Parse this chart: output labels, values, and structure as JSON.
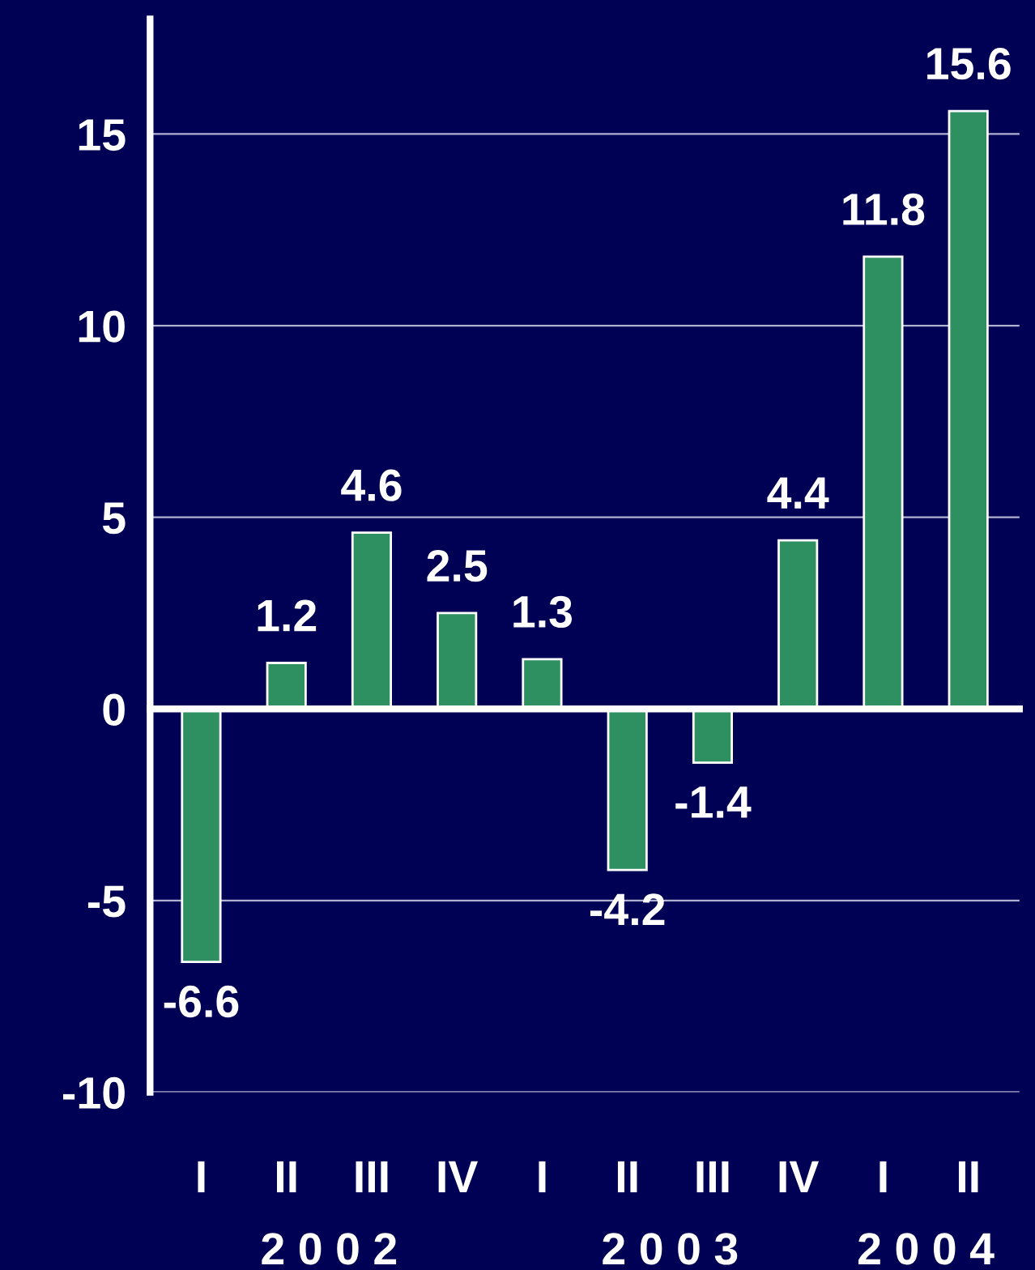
{
  "chart_data": {
    "type": "bar",
    "categories": [
      "I",
      "II",
      "III",
      "IV",
      "I",
      "II",
      "III",
      "IV",
      "I",
      "II"
    ],
    "values": [
      -6.6,
      1.2,
      4.6,
      2.5,
      1.3,
      -4.2,
      -1.4,
      4.4,
      11.8,
      15.6
    ],
    "color": "#2e8f60",
    "data_labels": true,
    "ylim": [
      -10,
      18
    ],
    "yticks": [
      -10,
      -5,
      0,
      5,
      10,
      15
    ],
    "grid": "y",
    "annotations": [
      "2 0 0 2",
      "2 0 0 3",
      "2 0 0 4"
    ]
  }
}
